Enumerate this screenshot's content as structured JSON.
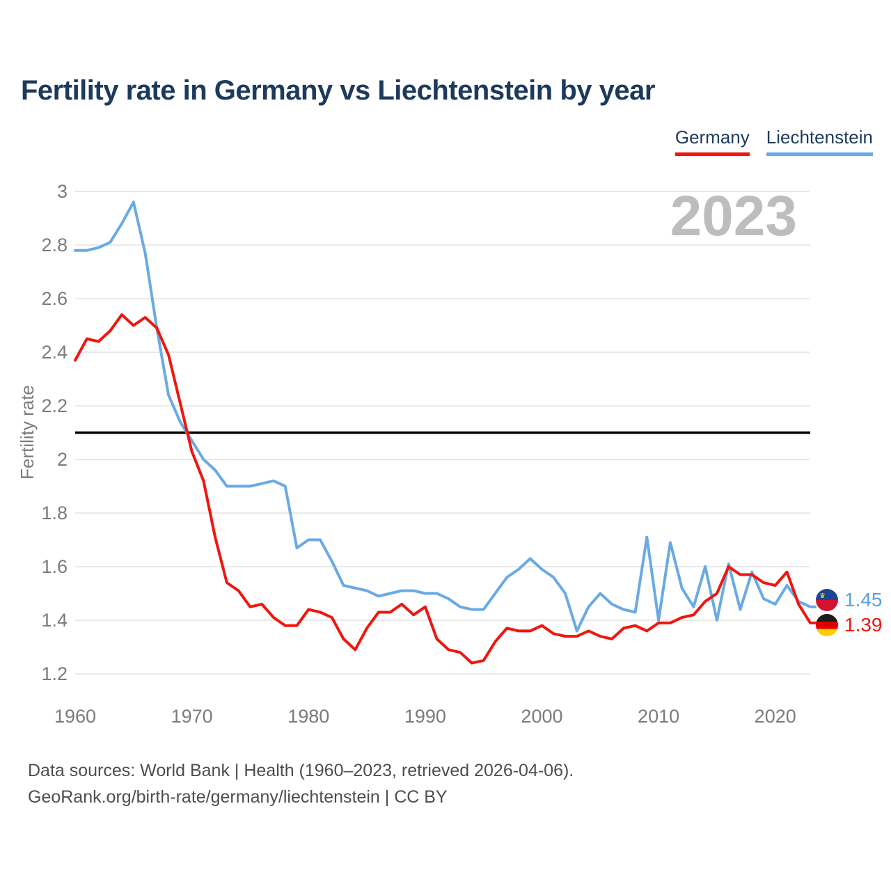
{
  "title": "Fertility rate in Germany vs Liechtenstein by year",
  "watermark": "2023",
  "legend": {
    "items": [
      {
        "label": "Germany",
        "color": "#f2150f"
      },
      {
        "label": "Liechtenstein",
        "color": "#6aaae4"
      }
    ]
  },
  "footer": {
    "line1": "Data sources: World Bank | Health (1960–2023, retrieved 2026-04-06).",
    "line2": "GeoRank.org/birth-rate/germany/liechtenstein | CC BY"
  },
  "chart_data": {
    "type": "line",
    "title": "Fertility rate in Germany vs Liechtenstein by year",
    "xlabel": "",
    "ylabel": "Fertility rate",
    "x_ticks": [
      1960,
      1970,
      1980,
      1990,
      2000,
      2010,
      2020
    ],
    "y_ticks": [
      3.0,
      2.8,
      2.6,
      2.4,
      2.2,
      2.0,
      1.8,
      1.6,
      1.4,
      1.2
    ],
    "ylim": [
      1.2,
      3.0
    ],
    "xlim": [
      1960,
      2023
    ],
    "grid": "horizontal",
    "legend_position": "top-right",
    "reference_line": {
      "value": 2.1,
      "color": "#000000",
      "meaning": "replacement-rate"
    },
    "x": [
      1960,
      1961,
      1962,
      1963,
      1964,
      1965,
      1966,
      1967,
      1968,
      1969,
      1970,
      1971,
      1972,
      1973,
      1974,
      1975,
      1976,
      1977,
      1978,
      1979,
      1980,
      1981,
      1982,
      1983,
      1984,
      1985,
      1986,
      1987,
      1988,
      1989,
      1990,
      1991,
      1992,
      1993,
      1994,
      1995,
      1996,
      1997,
      1998,
      1999,
      2000,
      2001,
      2002,
      2003,
      2004,
      2005,
      2006,
      2007,
      2008,
      2009,
      2010,
      2011,
      2012,
      2013,
      2014,
      2015,
      2016,
      2017,
      2018,
      2019,
      2020,
      2021,
      2022,
      2023
    ],
    "series": [
      {
        "name": "Germany",
        "color": "#f2150f",
        "end_label": "1.39",
        "end_year": 2023,
        "values": [
          2.37,
          2.45,
          2.44,
          2.48,
          2.54,
          2.5,
          2.53,
          2.49,
          2.39,
          2.21,
          2.03,
          1.92,
          1.71,
          1.54,
          1.51,
          1.45,
          1.46,
          1.41,
          1.38,
          1.38,
          1.44,
          1.43,
          1.41,
          1.33,
          1.29,
          1.37,
          1.43,
          1.43,
          1.46,
          1.42,
          1.45,
          1.33,
          1.29,
          1.28,
          1.24,
          1.25,
          1.32,
          1.37,
          1.36,
          1.36,
          1.38,
          1.35,
          1.34,
          1.34,
          1.36,
          1.34,
          1.33,
          1.37,
          1.38,
          1.36,
          1.39,
          1.39,
          1.41,
          1.42,
          1.47,
          1.5,
          1.6,
          1.57,
          1.57,
          1.54,
          1.53,
          1.58,
          1.46,
          1.39
        ]
      },
      {
        "name": "Liechtenstein",
        "color": "#6aaae4",
        "end_label": "1.45",
        "end_year": 2023,
        "values": [
          2.78,
          2.78,
          2.79,
          2.81,
          2.88,
          2.96,
          2.77,
          2.49,
          2.24,
          2.14,
          2.07,
          2.0,
          1.96,
          1.9,
          1.9,
          1.9,
          1.91,
          1.92,
          1.9,
          1.67,
          1.7,
          1.7,
          1.62,
          1.53,
          1.52,
          1.51,
          1.49,
          1.5,
          1.51,
          1.51,
          1.5,
          1.5,
          1.48,
          1.45,
          1.44,
          1.44,
          1.5,
          1.56,
          1.59,
          1.63,
          1.59,
          1.56,
          1.5,
          1.36,
          1.45,
          1.5,
          1.46,
          1.44,
          1.43,
          1.71,
          1.4,
          1.69,
          1.52,
          1.45,
          1.6,
          1.4,
          1.61,
          1.44,
          1.58,
          1.48,
          1.46,
          1.53,
          1.47,
          1.45
        ]
      }
    ]
  }
}
